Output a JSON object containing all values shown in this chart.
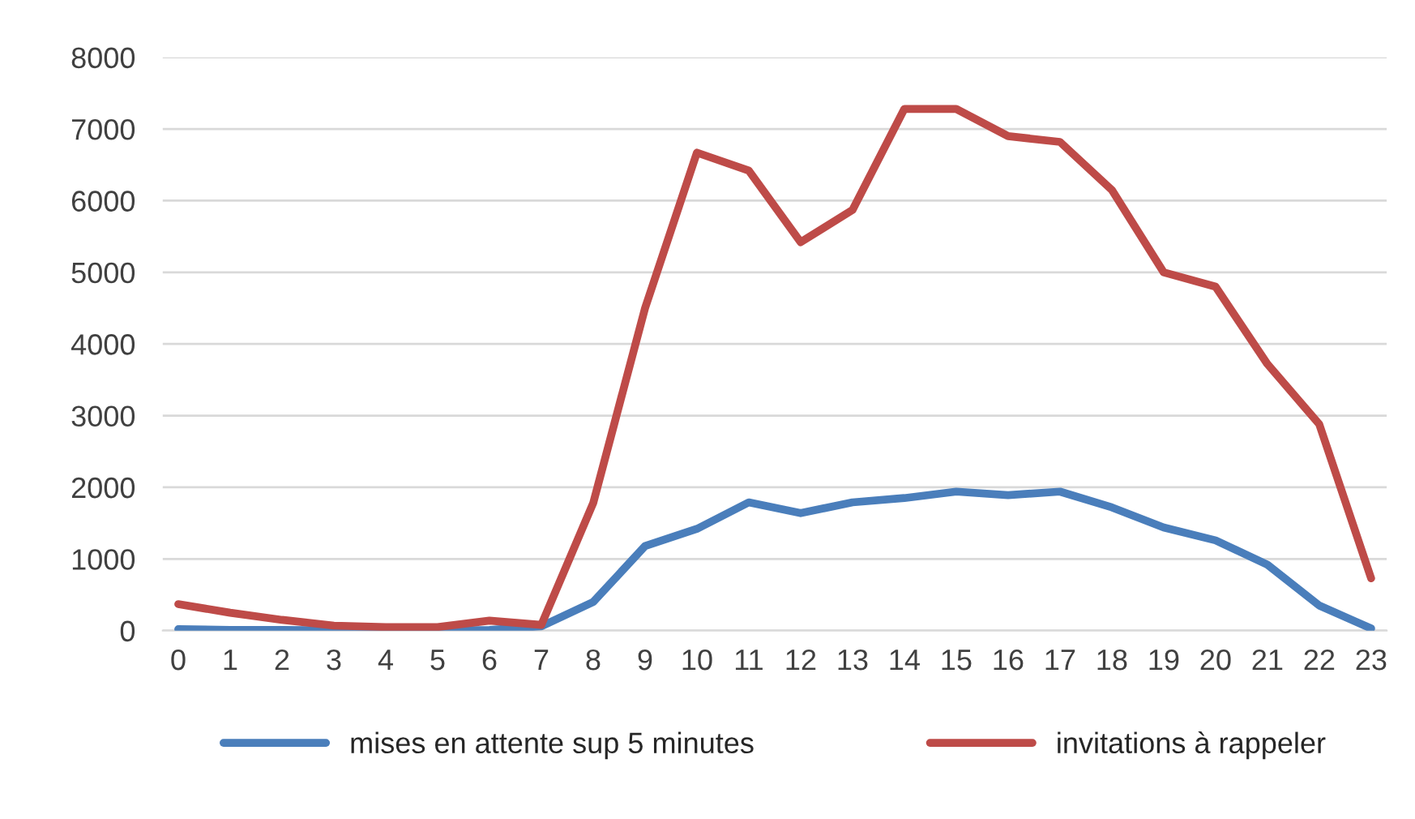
{
  "chart_data": {
    "type": "line",
    "categories": [
      "0",
      "1",
      "2",
      "3",
      "4",
      "5",
      "6",
      "7",
      "8",
      "9",
      "10",
      "11",
      "12",
      "13",
      "14",
      "15",
      "16",
      "17",
      "18",
      "19",
      "20",
      "21",
      "22",
      "23"
    ],
    "series": [
      {
        "name": "mises en attente sup 5 minutes",
        "color": "#4a7ebb",
        "values": [
          20,
          10,
          10,
          5,
          5,
          5,
          10,
          60,
          400,
          1180,
          1420,
          1790,
          1640,
          1790,
          1850,
          1940,
          1890,
          1940,
          1720,
          1440,
          1260,
          920,
          350,
          30
        ]
      },
      {
        "name": "invitations à rappeler",
        "color": "#be4b48",
        "values": [
          370,
          250,
          150,
          70,
          50,
          50,
          140,
          80,
          1780,
          4500,
          6670,
          6420,
          5420,
          5870,
          7280,
          7280,
          6900,
          6820,
          6150,
          5000,
          4800,
          3720,
          2880,
          730
        ]
      }
    ],
    "ylim": [
      0,
      8000
    ],
    "yticks": [
      0,
      1000,
      2000,
      3000,
      4000,
      5000,
      6000,
      7000,
      8000
    ],
    "grid": "y",
    "legend": "bottom",
    "marker": "none",
    "line_style": "solid"
  }
}
